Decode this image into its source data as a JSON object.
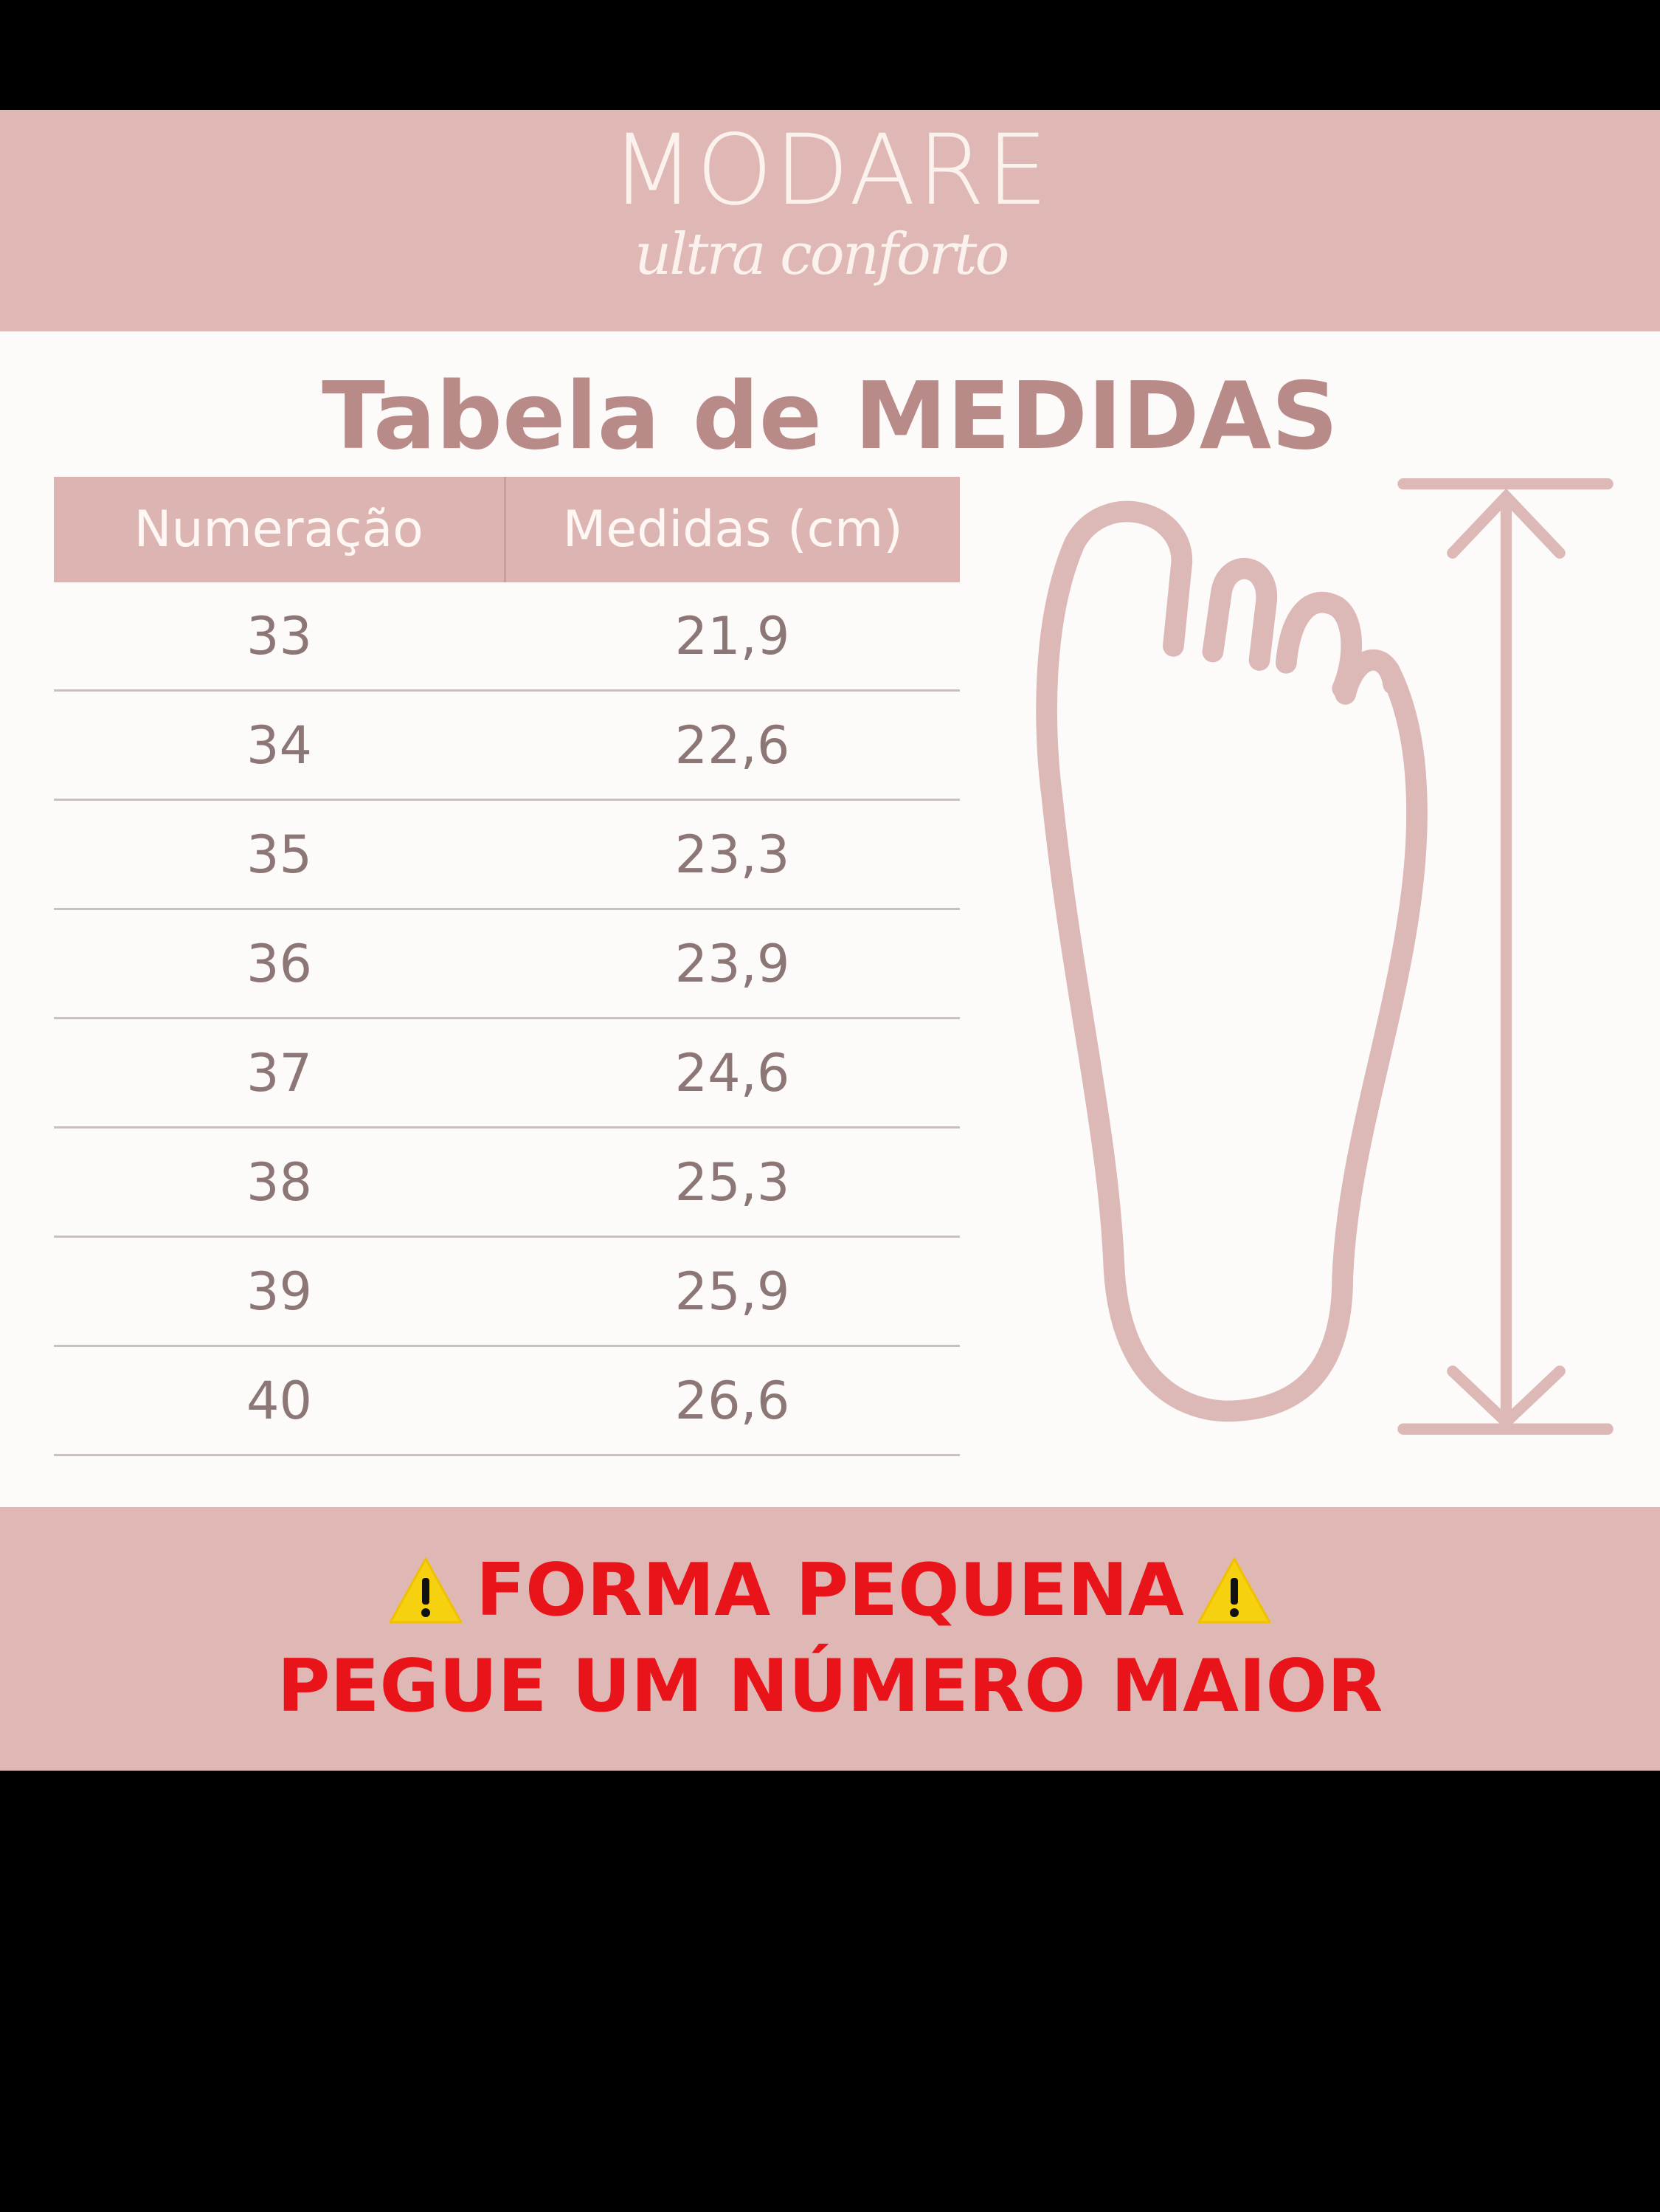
{
  "brand": {
    "name": "MODARE",
    "tagline": "ultra conforto"
  },
  "title": "Tabela de MEDIDAS",
  "table": {
    "headers": [
      "Numeração",
      "Medidas (cm)"
    ],
    "rows": [
      [
        "33",
        "21,9"
      ],
      [
        "34",
        "22,6"
      ],
      [
        "35",
        "23,3"
      ],
      [
        "36",
        "23,9"
      ],
      [
        "37",
        "24,6"
      ],
      [
        "38",
        "25,3"
      ],
      [
        "39",
        "25,9"
      ],
      [
        "40",
        "26,6"
      ]
    ]
  },
  "warning": {
    "line1": "FORMA PEQUENA",
    "line2": "PEGUE UM NÚMERO MAIOR",
    "icon": "warning-icon"
  },
  "colors": {
    "pink": "#dfb8b5",
    "title": "#b88a88",
    "warning_red": "#e8141a"
  }
}
